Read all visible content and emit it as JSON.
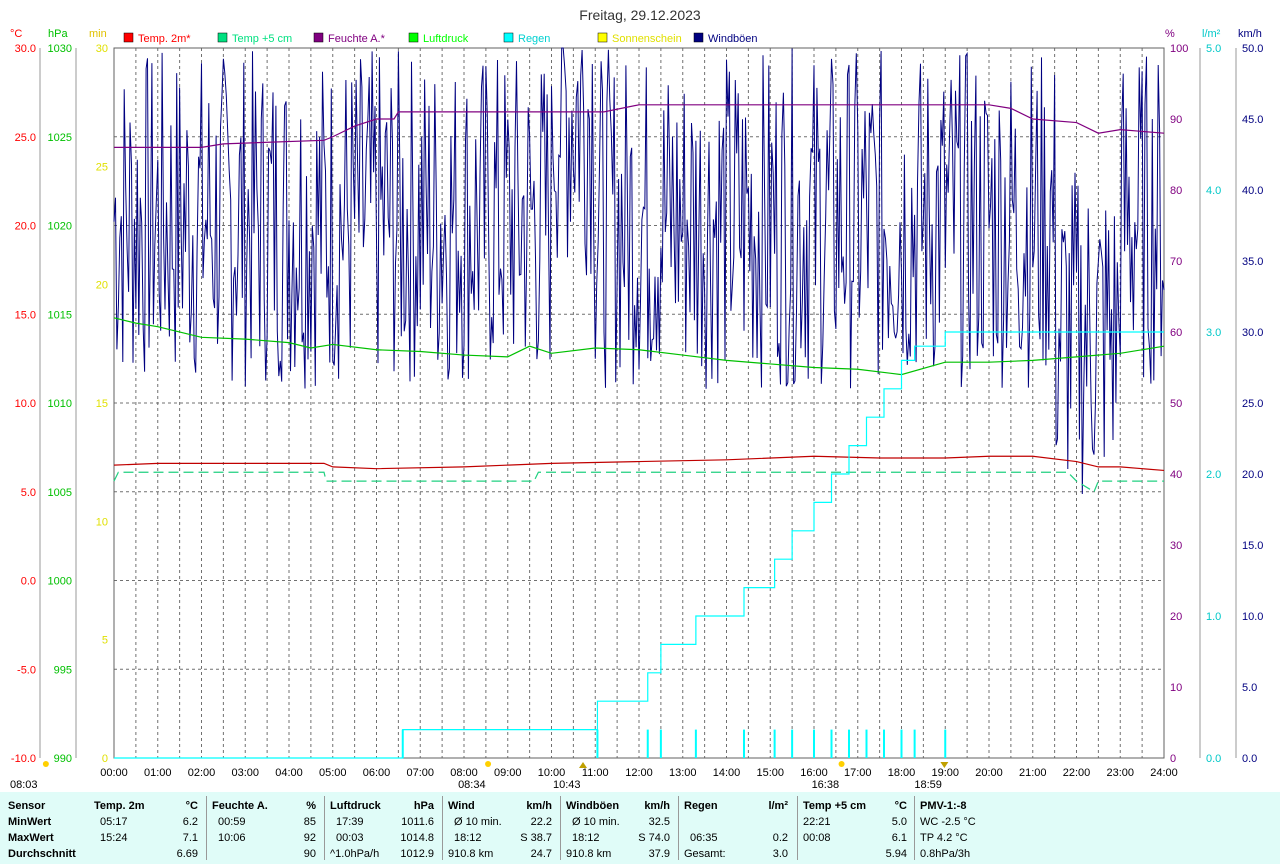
{
  "chart_data": {
    "type": "line",
    "title": "Freitag, 29.12.2023",
    "x_ticks": [
      "00:00",
      "01:00",
      "02:00",
      "03:00",
      "04:00",
      "05:00",
      "06:00",
      "07:00",
      "08:00",
      "09:00",
      "10:00",
      "11:00",
      "12:00",
      "13:00",
      "14:00",
      "15:00",
      "16:00",
      "17:00",
      "18:00",
      "19:00",
      "20:00",
      "21:00",
      "22:00",
      "23:00",
      "24:00"
    ],
    "axes": {
      "temp": {
        "unit": "°C",
        "min": -10,
        "max": 30,
        "ticks": [
          "30.0",
          "25.0",
          "20.0",
          "15.0",
          "10.0",
          "5.0",
          "0.0",
          "-5.0",
          "-10.0"
        ],
        "color": "#ff0000"
      },
      "pressure": {
        "unit": "hPa",
        "min": 990,
        "max": 1030,
        "ticks": [
          "1030",
          "1025",
          "1020",
          "1015",
          "1010",
          "1005",
          "1000",
          "995",
          "990"
        ],
        "color": "#00c000"
      },
      "sun": {
        "unit": "min",
        "min": 0,
        "max": 30,
        "ticks": [
          "30",
          "25",
          "20",
          "15",
          "10",
          "5",
          "0"
        ],
        "color": "#ffff00"
      },
      "humidity": {
        "unit": "%",
        "min": 0,
        "max": 100,
        "ticks": [
          "100",
          "90",
          "80",
          "70",
          "60",
          "50",
          "40",
          "30",
          "20",
          "10",
          "0"
        ],
        "color": "#800080"
      },
      "rain": {
        "unit": "l/m²",
        "min": 0,
        "max": 5,
        "ticks": [
          "5.0",
          "4.0",
          "3.0",
          "2.0",
          "1.0",
          "0.0"
        ],
        "color": "#00ffff"
      },
      "wind": {
        "unit": "km/h",
        "min": 0,
        "max": 50,
        "ticks": [
          "50.0",
          "45.0",
          "40.0",
          "35.0",
          "30.0",
          "25.0",
          "20.0",
          "15.0",
          "10.0",
          "5.0",
          "0.0"
        ],
        "color": "#000080"
      }
    },
    "legend": [
      {
        "name": "Temp. 2m*",
        "color": "#ff0000"
      },
      {
        "name": "Temp +5 cm",
        "color": "#00e080"
      },
      {
        "name": "Feuchte A.*",
        "color": "#800080"
      },
      {
        "name": "Luftdruck",
        "color": "#00ff00"
      },
      {
        "name": "Regen",
        "color": "#00ffff"
      },
      {
        "name": "Sonnenschein",
        "color": "#ffff00"
      },
      {
        "name": "Windböen",
        "color": "#000080"
      }
    ],
    "series": {
      "temp2m": {
        "axis": "temp",
        "color": "#c00000",
        "x": [
          0,
          1,
          2,
          4.8,
          5,
          6,
          8,
          10,
          12,
          14,
          16,
          17.5,
          19,
          20,
          21,
          22,
          22.5,
          23,
          24
        ],
        "y": [
          6.5,
          6.6,
          6.6,
          6.6,
          6.4,
          6.3,
          6.4,
          6.6,
          6.7,
          6.8,
          7.0,
          6.9,
          6.9,
          7.0,
          7.0,
          6.7,
          6.4,
          6.4,
          6.2
        ]
      },
      "temp5cm": {
        "axis": "temp",
        "color": "#20d080",
        "dashed": true,
        "x": [
          0,
          0.1,
          4.8,
          4.85,
          9.6,
          9.7,
          21.8,
          22,
          22.4,
          22.5,
          24
        ],
        "y": [
          5.6,
          6.1,
          6.1,
          5.6,
          5.6,
          6.1,
          6.1,
          5.6,
          5.0,
          5.6,
          5.6
        ]
      },
      "humidity": {
        "axis": "humidity",
        "color": "#800080",
        "x": [
          0,
          2,
          2.5,
          4.8,
          5,
          5.5,
          6,
          6.4,
          6.5,
          7,
          8,
          9,
          10,
          11,
          11.2,
          12,
          13,
          14,
          15,
          16,
          17,
          18,
          19,
          20,
          20.5,
          21,
          22,
          22.5,
          23,
          24
        ],
        "y": [
          86,
          86,
          86.5,
          87,
          87.5,
          89,
          90,
          90,
          91,
          91,
          91,
          91,
          91,
          91,
          91,
          92,
          92,
          92,
          92,
          92,
          92,
          92,
          92,
          92,
          91.5,
          90,
          89.5,
          88,
          88.5,
          88
        ],
        "color2": "#800080"
      },
      "pressure": {
        "axis": "pressure",
        "color": "#00c000",
        "x": [
          0,
          0.5,
          1,
          2,
          3,
          4,
          4.5,
          5,
          6,
          7,
          8,
          9,
          9.5,
          10,
          11,
          12,
          13,
          14,
          15,
          16,
          17,
          18,
          19,
          20,
          21,
          22,
          23,
          24
        ],
        "y": [
          1014.8,
          1014.5,
          1014.3,
          1013.7,
          1013.6,
          1013.4,
          1013.1,
          1013.3,
          1013.0,
          1012.9,
          1012.7,
          1012.6,
          1013.2,
          1012.8,
          1013.1,
          1013.0,
          1012.7,
          1012.4,
          1012.2,
          1012.0,
          1011.9,
          1011.6,
          1012.3,
          1012.3,
          1012.4,
          1012.6,
          1012.8,
          1013.2
        ]
      },
      "rain": {
        "axis": "rain",
        "color": "#00ffff",
        "step": true,
        "x": [
          0,
          6.58,
          6.6,
          11.0,
          11.05,
          12.2,
          12.5,
          13.3,
          14.4,
          15.1,
          15.5,
          16.0,
          16.4,
          16.8,
          17.2,
          17.6,
          18.0,
          18.3,
          19.0,
          24
        ],
        "y": [
          0,
          0,
          0.2,
          0.2,
          0.4,
          0.6,
          0.8,
          1.0,
          1.2,
          1.4,
          1.6,
          1.8,
          2.0,
          2.2,
          2.4,
          2.6,
          2.8,
          2.9,
          3.0,
          3.0
        ]
      },
      "rain_bars": {
        "axis": "rain",
        "color": "#00ffff",
        "x": [
          6.6,
          11.05,
          12.2,
          12.5,
          13.3,
          14.4,
          15.1,
          15.5,
          16.0,
          16.4,
          16.8,
          17.2,
          17.6,
          18.0,
          18.3,
          19.0
        ],
        "y": [
          0.2,
          0.2,
          0.2,
          0.2,
          0.2,
          0.2,
          0.2,
          0.2,
          0.2,
          0.2,
          0.2,
          0.2,
          0.2,
          0.2,
          0.2,
          0.2
        ]
      },
      "windgust": {
        "axis": "wind",
        "color": "#000080",
        "mean": 38,
        "amplitude": 12
      }
    },
    "below_axis_labels": [
      {
        "text": "08:03",
        "symbol": "sun",
        "x_hour": 0.5
      },
      {
        "text": "08:34",
        "symbol": "sun",
        "x_hour": 8.55
      },
      {
        "text": "10:43",
        "symbol": "up",
        "x_hour": 10.72
      },
      {
        "text": "16:38",
        "symbol": "sun",
        "x_hour": 16.63
      },
      {
        "text": "18:59",
        "symbol": "down",
        "x_hour": 18.98
      }
    ]
  },
  "stats": {
    "row_labels": [
      "Sensor",
      "MinWert",
      "MaxWert",
      "Durchschnitt"
    ],
    "columns": [
      {
        "title": "Temp. 2m",
        "unit": "°C",
        "rows": [
          [
            "05:17",
            "6.2"
          ],
          [
            "15:24",
            "7.1"
          ],
          [
            "",
            "6.69"
          ]
        ]
      },
      {
        "title": "Feuchte A.",
        "unit": "%",
        "rows": [
          [
            "00:59",
            "85"
          ],
          [
            "10:06",
            "92"
          ],
          [
            "",
            "90"
          ]
        ]
      },
      {
        "title": "Luftdruck",
        "unit": "hPa",
        "rows": [
          [
            "17:39",
            "1011.6"
          ],
          [
            "00:03",
            "1014.8"
          ],
          [
            "^1.0hPa/h",
            "1012.9"
          ]
        ]
      },
      {
        "title": "Wind",
        "unit": "km/h",
        "rows": [
          [
            "Ø 10 min.",
            "22.2"
          ],
          [
            "18:12",
            "S 38.7"
          ],
          [
            "910.8 km",
            "24.7"
          ]
        ]
      },
      {
        "title": "Windböen",
        "unit": "km/h",
        "rows": [
          [
            "Ø 10 min.",
            "32.5"
          ],
          [
            "18:12",
            "S 74.0"
          ],
          [
            "910.8 km",
            "37.9"
          ]
        ]
      },
      {
        "title": "Regen",
        "unit": "l/m²",
        "rows": [
          [
            "",
            ""
          ],
          [
            "06:35",
            "0.2"
          ],
          [
            "Gesamt:",
            "3.0"
          ]
        ]
      },
      {
        "title": "Temp +5 cm",
        "unit": "°C",
        "rows": [
          [
            "22:21",
            "5.0"
          ],
          [
            "00:08",
            "6.1"
          ],
          [
            "",
            "5.94"
          ]
        ]
      },
      {
        "title": "PMV-1:-8",
        "unit": "",
        "rows": [
          [
            "WC -2.5 °C",
            ""
          ],
          [
            "TP 4.2 °C",
            ""
          ],
          [
            "0.8hPa/3h",
            ""
          ]
        ]
      }
    ]
  }
}
